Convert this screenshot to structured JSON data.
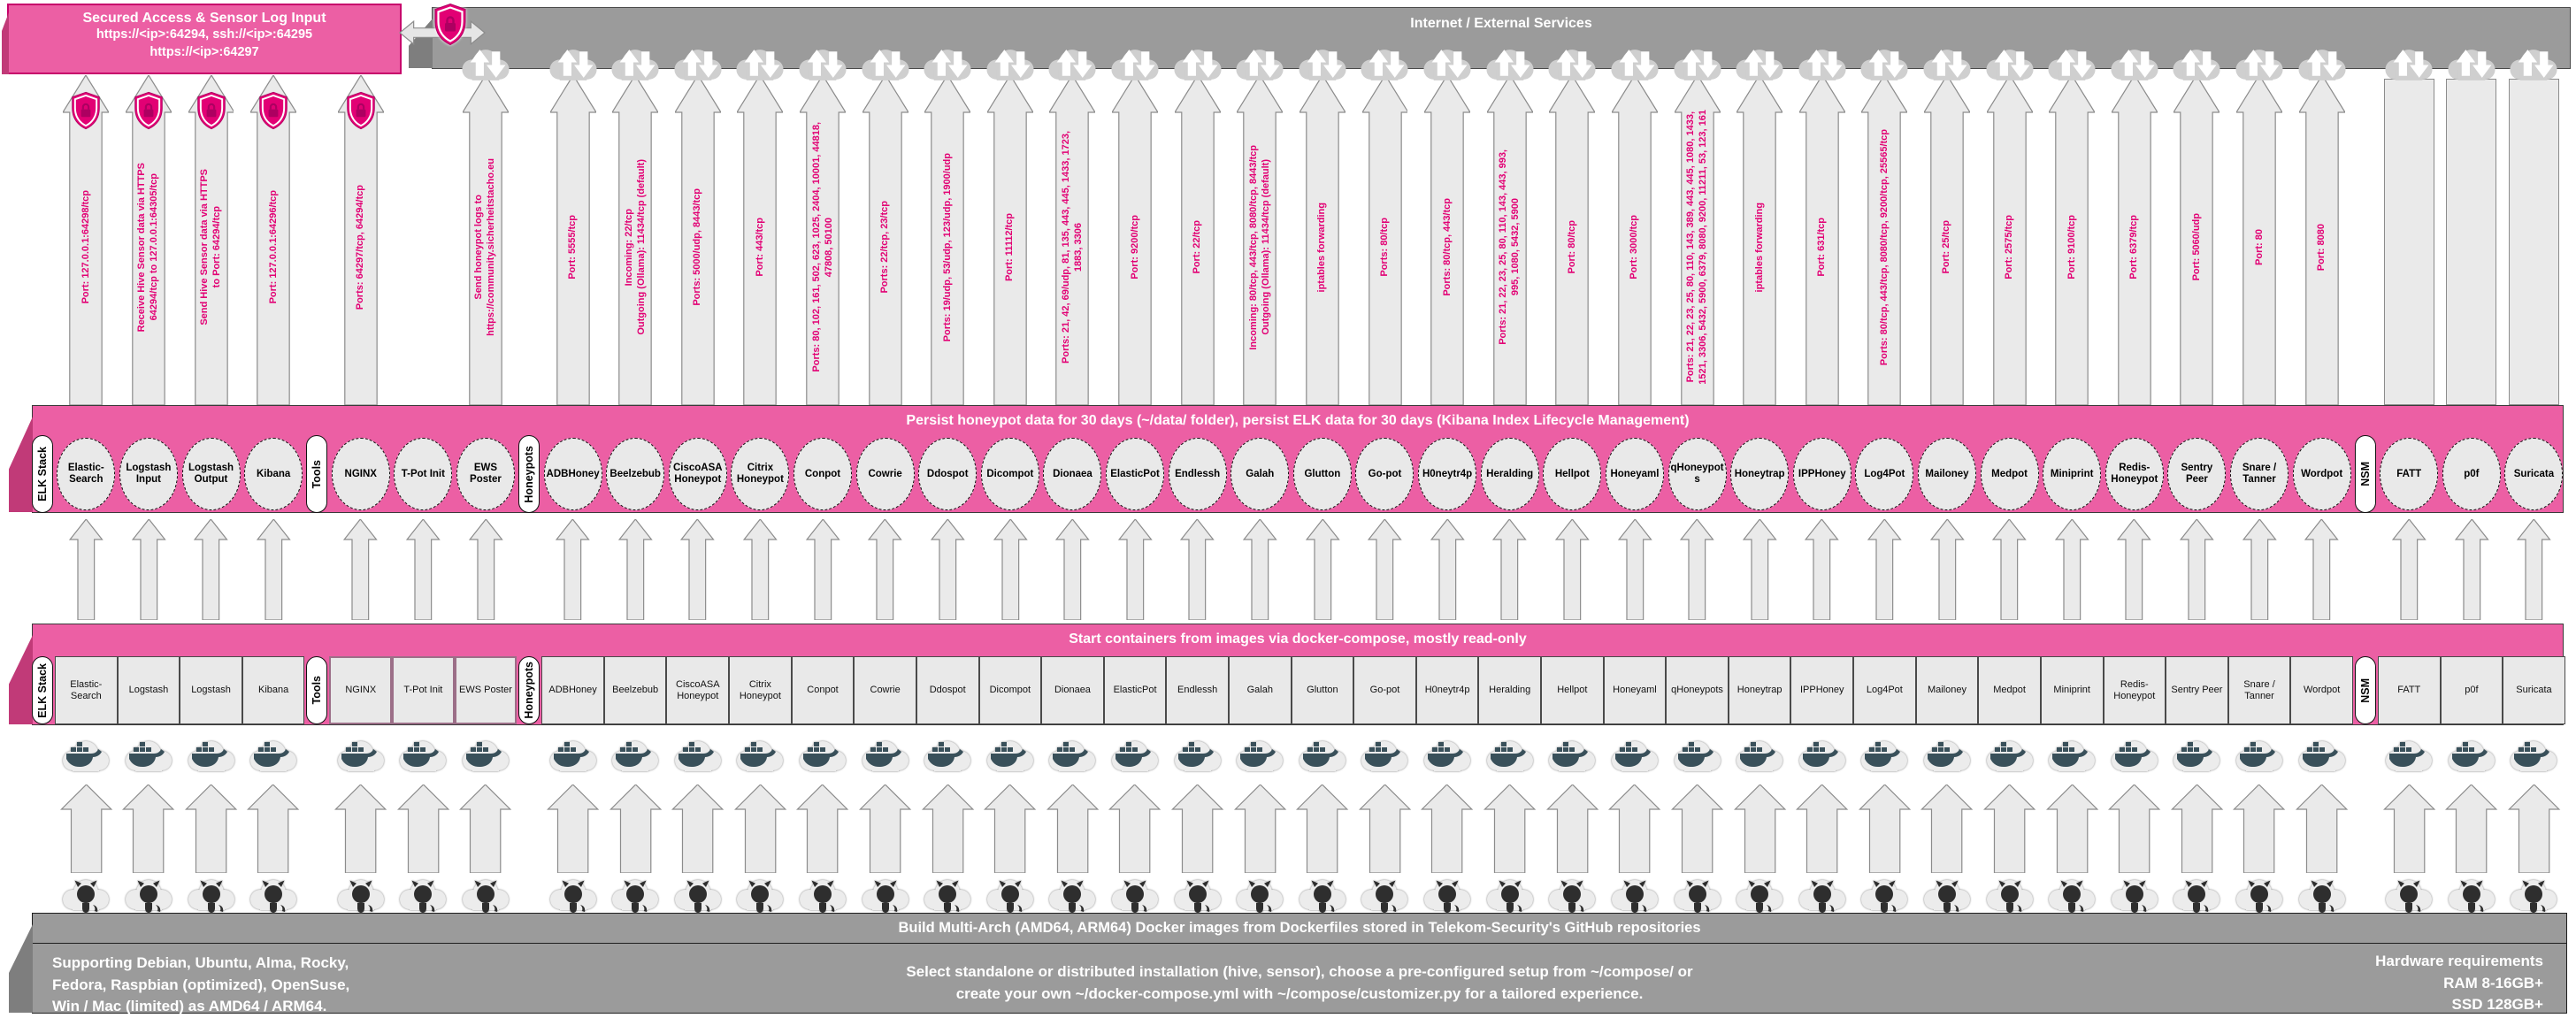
{
  "colors": {
    "magenta": "#E20074",
    "pink_fill": "#EC5FA4",
    "pink_dark": "#C13A78",
    "gray_band": "#9B9B9B",
    "gray_dark": "#7E7E7E",
    "arrow_fill": "#EAEAEA",
    "arrow_stroke": "#8C8C8C",
    "node_fill": "#E9E9E9"
  },
  "icons": {
    "lock_shield": "lock-shield-icon",
    "cloud_updown": "cloud-sync-icon",
    "docker": "docker-whale-icon",
    "github": "github-octocat-icon"
  },
  "secured_access": {
    "title": "Secured Access & Sensor Log Input",
    "line1": "https://<ip>:64294, ssh://<ip>:64295",
    "line2": "https://<ip>:64297"
  },
  "internet": {
    "title": "Internet / External Services"
  },
  "bands": {
    "persist": "Persist honeypot data for 30 days (~/data/ folder), persist ELK data for 30 days (Kibana Index Lifecycle Management)",
    "start": "Start containers from images via docker-compose, mostly read-only",
    "build": "Build Multi-Arch (AMD64, ARM64) Docker images from Dockerfiles stored in Telekom-Security's GitHub repositories"
  },
  "footer": {
    "left_lines": [
      "Supporting Debian, Ubuntu, Alma, Rocky,",
      "Fedora, Raspbian (optimized), OpenSuse,",
      "Win / Mac (limited) as AMD64 / ARM64."
    ],
    "center_lines": [
      "Select standalone or distributed installation (hive, sensor), choose a pre-configured setup from ~/compose/ or",
      "create your own ~/docker-compose.yml with ~/compose/customizer.py for a tailored experience."
    ],
    "right_title": "Hardware requirements",
    "right_lines": [
      "RAM 8-16GB+",
      "SSD 128GB+"
    ]
  },
  "columns": [
    {
      "type": "pill",
      "label": "ELK Stack"
    },
    {
      "type": "item",
      "group": "elk",
      "name": "Elastic-Search",
      "oval": "Elastic-Search",
      "rect": "Elastic-Search",
      "top": {
        "kind": "shield",
        "lines": [
          "Port: 127.0.0.1:64298/tcp"
        ]
      }
    },
    {
      "type": "item",
      "group": "elk",
      "name": "Logstash Input",
      "oval": "Logstash Input",
      "rect": "Logstash",
      "top": {
        "kind": "shield",
        "lines": [
          "Receive Hive Sensor data via HTTPS",
          "64294/tcp to 127.0.0.1:64305/tcp"
        ]
      }
    },
    {
      "type": "item",
      "group": "elk",
      "name": "Logstash Output",
      "oval": "Logstash Output",
      "rect": "Logstash",
      "top": {
        "kind": "shield",
        "lines": [
          "Send Hive Sensor data via HTTPS",
          "to Port: 64294/tcp"
        ]
      }
    },
    {
      "type": "item",
      "group": "elk",
      "name": "Kibana",
      "oval": "Kibana",
      "rect": "Kibana",
      "top": {
        "kind": "shield",
        "lines": [
          "Port: 127.0.0.1:64296/tcp"
        ]
      }
    },
    {
      "type": "pill",
      "label": "Tools"
    },
    {
      "type": "item",
      "group": "tools",
      "name": "NGINX",
      "oval": "NGINX",
      "rect": "NGINX",
      "top": {
        "kind": "shield",
        "lines": [
          "Ports: 64297/tcp, 64294/tcp"
        ]
      }
    },
    {
      "type": "item",
      "group": "tools",
      "name": "T-Pot Init",
      "oval": "T-Pot Init",
      "rect": "T-Pot Init",
      "top": null
    },
    {
      "type": "item",
      "group": "tools",
      "name": "EWS Poster",
      "oval": "EWS Poster",
      "rect": "EWS Poster",
      "top": {
        "kind": "cloud",
        "lines": [
          "Send honeypot logs to",
          "https://community.sicherheitstacho.eu"
        ]
      }
    },
    {
      "type": "pill",
      "label": "Honeypots"
    },
    {
      "type": "item",
      "group": "honeypots",
      "name": "ADBHoney",
      "oval": "ADBHoney",
      "rect": "ADBHoney",
      "top": {
        "kind": "cloud",
        "lines": [
          "Port: 5555/tcp"
        ]
      }
    },
    {
      "type": "item",
      "group": "honeypots",
      "name": "Beelzebub",
      "oval": "Beelzebub",
      "rect": "Beelzebub",
      "top": {
        "kind": "cloud",
        "lines": [
          "Incoming: 22/tcp",
          "Outgoing (Ollama): 11434/tcp (default)"
        ]
      }
    },
    {
      "type": "item",
      "group": "honeypots",
      "name": "CiscoASA Honeypot",
      "oval": "CiscoASA Honeypot",
      "rect": "CiscoASA Honeypot",
      "top": {
        "kind": "cloud",
        "lines": [
          "Ports: 5000/udp, 8443/tcp"
        ]
      }
    },
    {
      "type": "item",
      "group": "honeypots",
      "name": "Citrix Honeypot",
      "oval": "Citrix Honeypot",
      "rect": "Citrix Honeypot",
      "top": {
        "kind": "cloud",
        "lines": [
          "Port: 443/tcp"
        ]
      }
    },
    {
      "type": "item",
      "group": "honeypots",
      "name": "Conpot",
      "oval": "Conpot",
      "rect": "Conpot",
      "top": {
        "kind": "cloud",
        "lines": [
          "Ports: 80, 102, 161, 502, 623, 1025, 2404, 10001, 44818,",
          "47808, 50100"
        ]
      }
    },
    {
      "type": "item",
      "group": "honeypots",
      "name": "Cowrie",
      "oval": "Cowrie",
      "rect": "Cowrie",
      "top": {
        "kind": "cloud",
        "lines": [
          "Ports: 22/tcp, 23/tcp"
        ]
      }
    },
    {
      "type": "item",
      "group": "honeypots",
      "name": "Ddospot",
      "oval": "Ddospot",
      "rect": "Ddospot",
      "top": {
        "kind": "cloud",
        "lines": [
          "Ports: 19/udp, 53/udp, 123/udp, 1900/udp"
        ]
      }
    },
    {
      "type": "item",
      "group": "honeypots",
      "name": "Dicompot",
      "oval": "Dicompot",
      "rect": "Dicompot",
      "top": {
        "kind": "cloud",
        "lines": [
          "Port: 11112/tcp"
        ]
      }
    },
    {
      "type": "item",
      "group": "honeypots",
      "name": "Dionaea",
      "oval": "Dionaea",
      "rect": "Dionaea",
      "top": {
        "kind": "cloud",
        "lines": [
          "Ports: 21, 42, 69/udp, 81, 135, 443, 445, 1433, 1723,",
          "1883, 3306"
        ]
      }
    },
    {
      "type": "item",
      "group": "honeypots",
      "name": "ElasticPot",
      "oval": "ElasticPot",
      "rect": "ElasticPot",
      "top": {
        "kind": "cloud",
        "lines": [
          "Port: 9200/tcp"
        ]
      }
    },
    {
      "type": "item",
      "group": "honeypots",
      "name": "Endlessh",
      "oval": "Endlessh",
      "rect": "Endlessh",
      "top": {
        "kind": "cloud",
        "lines": [
          "Port: 22/tcp"
        ]
      }
    },
    {
      "type": "item",
      "group": "honeypots",
      "name": "Galah",
      "oval": "Galah",
      "rect": "Galah",
      "top": {
        "kind": "cloud",
        "lines": [
          "Incoming: 80/tcp, 443/tcp, 8080/tcp, 8443/tcp",
          "Outgoing (Ollama): 11434/tcp (default)"
        ]
      }
    },
    {
      "type": "item",
      "group": "honeypots",
      "name": "Glutton",
      "oval": "Glutton",
      "rect": "Glutton",
      "top": {
        "kind": "cloud",
        "lines": [
          "iptables forwarding"
        ]
      }
    },
    {
      "type": "item",
      "group": "honeypots",
      "name": "Go-pot",
      "oval": "Go-pot",
      "rect": "Go-pot",
      "top": {
        "kind": "cloud",
        "lines": [
          "Ports: 80/tcp"
        ]
      }
    },
    {
      "type": "item",
      "group": "honeypots",
      "name": "H0neytr4p",
      "oval": "H0neytr4p",
      "rect": "H0neytr4p",
      "top": {
        "kind": "cloud",
        "lines": [
          "Ports: 80/tcp, 443/tcp"
        ]
      }
    },
    {
      "type": "item",
      "group": "honeypots",
      "name": "Heralding",
      "oval": "Heralding",
      "rect": "Heralding",
      "top": {
        "kind": "cloud",
        "lines": [
          "Ports: 21, 22, 23, 25, 80, 110, 143, 443, 993,",
          "995, 1080, 5432, 5900"
        ]
      }
    },
    {
      "type": "item",
      "group": "honeypots",
      "name": "Hellpot",
      "oval": "Hellpot",
      "rect": "Hellpot",
      "top": {
        "kind": "cloud",
        "lines": [
          "Port: 80/tcp"
        ]
      }
    },
    {
      "type": "item",
      "group": "honeypots",
      "name": "Honeyaml",
      "oval": "Honeyaml",
      "rect": "Honeyaml",
      "top": {
        "kind": "cloud",
        "lines": [
          "Port: 3000/tcp"
        ]
      }
    },
    {
      "type": "item",
      "group": "honeypots",
      "name": "qHoneypots",
      "oval": "qHoneypots",
      "rect": "qHoneypots",
      "top": {
        "kind": "cloud",
        "lines": [
          "Ports: 21, 22, 23, 25, 80, 110, 143, 389, 443, 445, 1080, 1433,",
          "1521, 3306, 5432, 5900, 6379, 8080, 9200, 11211, 53, 123, 161"
        ]
      }
    },
    {
      "type": "item",
      "group": "honeypots",
      "name": "Honeytrap",
      "oval": "Honeytrap",
      "rect": "Honeytrap",
      "top": {
        "kind": "cloud",
        "lines": [
          "iptables forwarding"
        ]
      }
    },
    {
      "type": "item",
      "group": "honeypots",
      "name": "IPPHoney",
      "oval": "IPPHoney",
      "rect": "IPPHoney",
      "top": {
        "kind": "cloud",
        "lines": [
          "Port: 631/tcp"
        ]
      }
    },
    {
      "type": "item",
      "group": "honeypots",
      "name": "Log4Pot",
      "oval": "Log4Pot",
      "rect": "Log4Pot",
      "top": {
        "kind": "cloud",
        "lines": [
          "Ports: 80/tcp, 443/tcp, 8080/tcp, 9200/tcp, 25565/tcp"
        ]
      }
    },
    {
      "type": "item",
      "group": "honeypots",
      "name": "Mailoney",
      "oval": "Mailoney",
      "rect": "Mailoney",
      "top": {
        "kind": "cloud",
        "lines": [
          "Port: 25/tcp"
        ]
      }
    },
    {
      "type": "item",
      "group": "honeypots",
      "name": "Medpot",
      "oval": "Medpot",
      "rect": "Medpot",
      "top": {
        "kind": "cloud",
        "lines": [
          "Port: 2575/tcp"
        ]
      }
    },
    {
      "type": "item",
      "group": "honeypots",
      "name": "Miniprint",
      "oval": "Miniprint",
      "rect": "Miniprint",
      "top": {
        "kind": "cloud",
        "lines": [
          "Port: 9100/tcp"
        ]
      }
    },
    {
      "type": "item",
      "group": "honeypots",
      "name": "Redis-Honeypot",
      "oval": "Redis-Honeypot",
      "rect": "Redis-Honeypot",
      "top": {
        "kind": "cloud",
        "lines": [
          "Port: 6379/tcp"
        ]
      }
    },
    {
      "type": "item",
      "group": "honeypots",
      "name": "Sentry Peer",
      "oval": "Sentry Peer",
      "rect": "Sentry Peer",
      "top": {
        "kind": "cloud",
        "lines": [
          "Port: 5060/udp"
        ]
      }
    },
    {
      "type": "item",
      "group": "honeypots",
      "name": "Snare / Tanner",
      "oval": "Snare / Tanner",
      "rect": "Snare / Tanner",
      "top": {
        "kind": "cloud",
        "lines": [
          "Port: 80"
        ]
      }
    },
    {
      "type": "item",
      "group": "honeypots",
      "name": "Wordpot",
      "oval": "Wordpot",
      "rect": "Wordpot",
      "top": {
        "kind": "cloud",
        "lines": [
          "Port: 8080"
        ]
      }
    },
    {
      "type": "pill",
      "label": "NSM"
    },
    {
      "type": "item",
      "group": "nsm",
      "name": "FATT",
      "oval": "FATT",
      "rect": "FATT",
      "top": {
        "kind": "bar",
        "lines": []
      }
    },
    {
      "type": "item",
      "group": "nsm",
      "name": "p0f",
      "oval": "p0f",
      "rect": "p0f",
      "top": {
        "kind": "bar",
        "lines": []
      }
    },
    {
      "type": "item",
      "group": "nsm",
      "name": "Suricata",
      "oval": "Suricata",
      "rect": "Suricata",
      "top": {
        "kind": "bar",
        "lines": []
      }
    }
  ]
}
